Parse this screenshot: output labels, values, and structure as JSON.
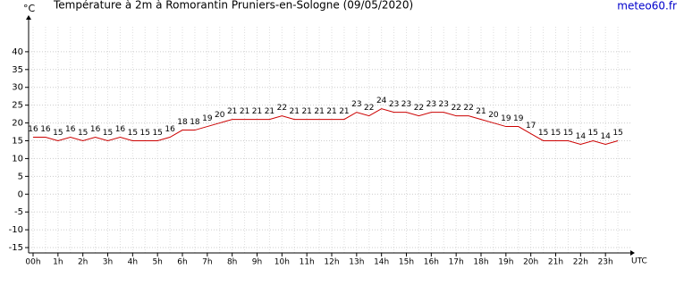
{
  "chart_data": {
    "type": "line",
    "title": "Température à 2m à Romorantin Pruniers-en-Sologne (09/05/2020)",
    "y_unit": "°C",
    "x_label": "UTC",
    "source": "meteo60.fr",
    "x": [
      0,
      0.5,
      1,
      1.5,
      2,
      2.5,
      3,
      3.5,
      4,
      4.5,
      5,
      5.5,
      6,
      6.5,
      7,
      7.5,
      8,
      8.5,
      9,
      9.5,
      10,
      10.5,
      11,
      11.5,
      12,
      12.5,
      13,
      13.5,
      14,
      14.5,
      15,
      15.5,
      16,
      16.5,
      17,
      17.5,
      18,
      18.5,
      19,
      19.5,
      20,
      20.5,
      21,
      21.5,
      22,
      22.5,
      23,
      23.5
    ],
    "series": [
      {
        "name": "Température",
        "color": "#cc0000",
        "values": [
          16,
          16,
          15,
          16,
          15,
          16,
          15,
          16,
          15,
          15,
          15,
          16,
          18,
          18,
          19,
          20,
          21,
          21,
          21,
          21,
          22,
          21,
          21,
          21,
          21,
          21,
          23,
          22,
          24,
          23,
          23,
          22,
          23,
          23,
          22,
          22,
          21,
          20,
          19,
          19,
          17,
          15,
          15,
          15,
          14,
          15,
          14,
          15
        ]
      }
    ],
    "xlim": [
      -0.18,
      24
    ],
    "xticks": [
      {
        "value": 0,
        "label": "00h"
      },
      {
        "value": 1,
        "label": "1h"
      },
      {
        "value": 2,
        "label": "2h"
      },
      {
        "value": 3,
        "label": "3h"
      },
      {
        "value": 4,
        "label": "4h"
      },
      {
        "value": 5,
        "label": "5h"
      },
      {
        "value": 6,
        "label": "6h"
      },
      {
        "value": 7,
        "label": "7h"
      },
      {
        "value": 8,
        "label": "8h"
      },
      {
        "value": 9,
        "label": "9h"
      },
      {
        "value": 10,
        "label": "10h"
      },
      {
        "value": 11,
        "label": "11h"
      },
      {
        "value": 12,
        "label": "12h"
      },
      {
        "value": 13,
        "label": "13h"
      },
      {
        "value": 14,
        "label": "14h"
      },
      {
        "value": 15,
        "label": "15h"
      },
      {
        "value": 16,
        "label": "16h"
      },
      {
        "value": 17,
        "label": "17h"
      },
      {
        "value": 18,
        "label": "18h"
      },
      {
        "value": 19,
        "label": "19h"
      },
      {
        "value": 20,
        "label": "20h"
      },
      {
        "value": 21,
        "label": "21h"
      },
      {
        "value": 22,
        "label": "22h"
      },
      {
        "value": 23,
        "label": "23h"
      }
    ],
    "ylim": [
      -16.5,
      47
    ],
    "yticks": [
      -15,
      -10,
      -5,
      0,
      5,
      10,
      15,
      20,
      25,
      30,
      35,
      40
    ],
    "grid": true
  }
}
